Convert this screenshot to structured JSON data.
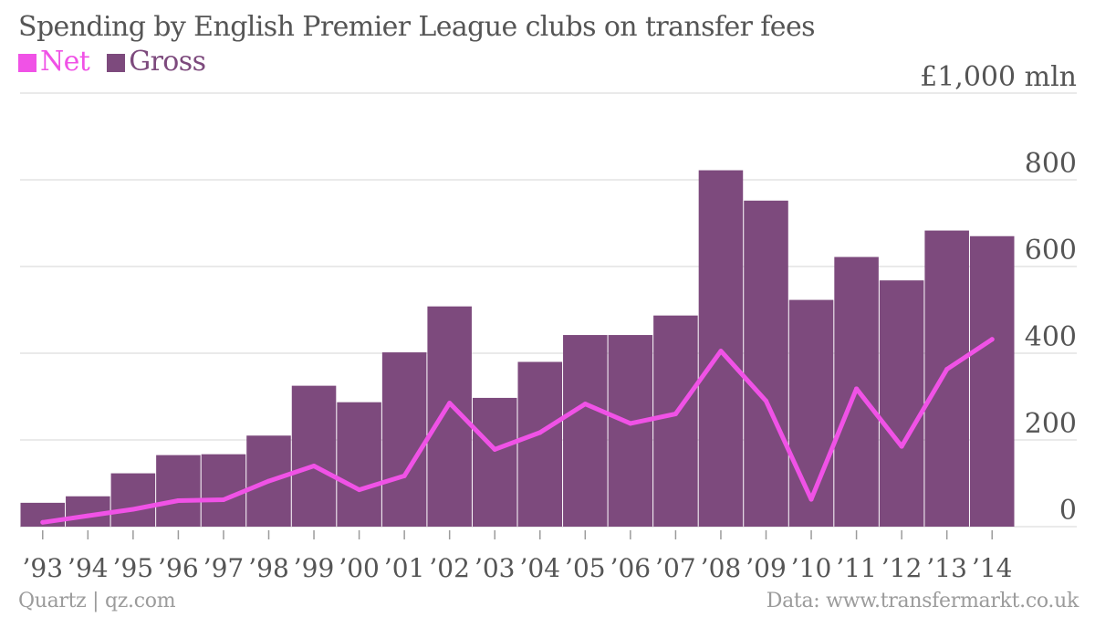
{
  "title": "Spending by English Premier League clubs on transfer fees",
  "legend": [
    {
      "label": "Net",
      "color": "#f052e6"
    },
    {
      "label": "Gross",
      "color": "#7d4a7d"
    }
  ],
  "footer": {
    "source_left": "Quartz | qz.com",
    "source_right": "Data: www.transfermarkt.co.uk"
  },
  "chart_data": {
    "type": "bar",
    "title": "Spending by English Premier League clubs on transfer fees",
    "categories": [
      "’93",
      "’94",
      "’95",
      "’96",
      "’97",
      "’98",
      "’99",
      "’00",
      "’01",
      "’02",
      "’03",
      "’04",
      "’05",
      "’06",
      "’07",
      "’08",
      "’09",
      "’10",
      "’11",
      "’12",
      "’13",
      "’14"
    ],
    "series": [
      {
        "name": "Gross",
        "type": "bar",
        "color": "#7d4a7d",
        "values": [
          55,
          70,
          123,
          165,
          167,
          210,
          325,
          287,
          402,
          508,
          297,
          380,
          442,
          442,
          487,
          822,
          752,
          523,
          622,
          568,
          683,
          670
        ]
      },
      {
        "name": "Net",
        "type": "line",
        "color": "#f052e6",
        "values": [
          10,
          25,
          40,
          60,
          62,
          105,
          140,
          85,
          117,
          285,
          178,
          217,
          283,
          238,
          260,
          405,
          290,
          63,
          318,
          185,
          363,
          432
        ]
      }
    ],
    "ylim": [
      0,
      1000
    ],
    "yticks": [
      "0",
      "200",
      "400",
      "600",
      "800",
      "£1,000 mln"
    ],
    "ytick_values": [
      0,
      200,
      400,
      600,
      800,
      1000
    ],
    "grid": true,
    "legend_position": "top-left"
  }
}
